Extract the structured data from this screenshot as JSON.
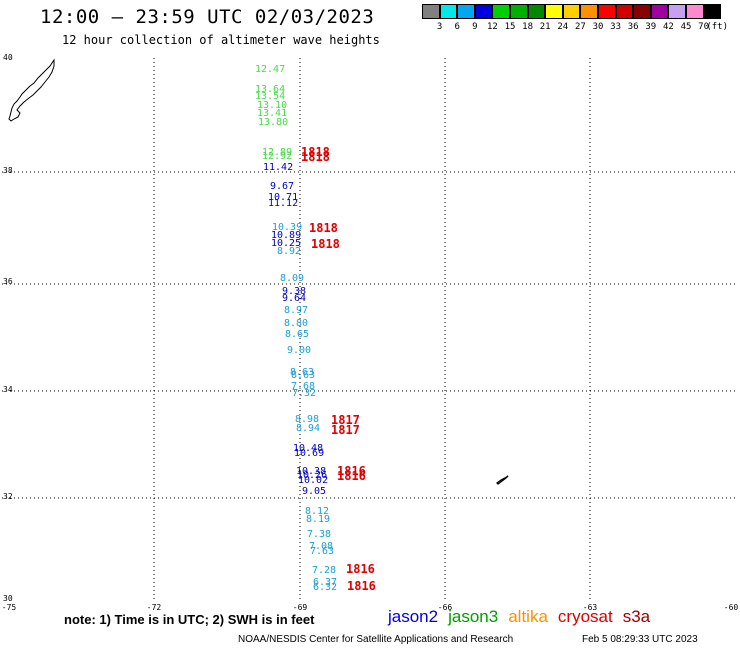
{
  "title": "12:00 — 23:59 UTC 02/03/2023",
  "subtitle": "12 hour collection of altimeter wave heights",
  "colorbar": {
    "colors": [
      "#808080",
      "#00e8e8",
      "#00a8f0",
      "#0000e0",
      "#00d000",
      "#00b000",
      "#008800",
      "#ffff00",
      "#ffd000",
      "#ff9000",
      "#ff0000",
      "#d00000",
      "#880000",
      "#a000a0",
      "#c8a0f0",
      "#ff88d0",
      "#000000"
    ],
    "labels": [
      "3",
      "6",
      "9",
      "12",
      "15",
      "18",
      "21",
      "24",
      "27",
      "30",
      "33",
      "36",
      "39",
      "42",
      "45",
      "70",
      "(ft)"
    ]
  },
  "axes": {
    "lat_labels": [
      "40",
      "38",
      "36",
      "34",
      "32",
      "30"
    ],
    "lon_labels": [
      "-75",
      "-72",
      "-69",
      "-66",
      "-63",
      "-60"
    ]
  },
  "observations": [
    {
      "text": "12.47",
      "color": "#44dd44"
    },
    {
      "text": "13.64",
      "color": "#44dd44"
    },
    {
      "text": "13.54",
      "color": "#44dd44"
    },
    {
      "text": "13.10",
      "color": "#44dd44"
    },
    {
      "text": "13.41",
      "color": "#44dd44"
    },
    {
      "text": "13.80",
      "color": "#44dd44"
    },
    {
      "text": "12.89",
      "color": "#44dd44"
    },
    {
      "text": "12.92",
      "color": "#44dd44"
    },
    {
      "text": "11.42",
      "color": "#0000c0"
    },
    {
      "text": "9.67",
      "color": "#0000c0"
    },
    {
      "text": "10.71",
      "color": "#0000c0"
    },
    {
      "text": "11.12",
      "color": "#0000c0"
    },
    {
      "text": "10.39",
      "color": "#1aa0d8"
    },
    {
      "text": "10.89",
      "color": "#0000c0"
    },
    {
      "text": "10.25",
      "color": "#0000c0"
    },
    {
      "text": "8.92",
      "color": "#1aa0d8"
    },
    {
      "text": "8.09",
      "color": "#1aa0d8"
    },
    {
      "text": "9.38",
      "color": "#0000c0"
    },
    {
      "text": "9.64",
      "color": "#0000c0"
    },
    {
      "text": "8.97",
      "color": "#1aa0d8"
    },
    {
      "text": "8.80",
      "color": "#1aa0d8"
    },
    {
      "text": "8.65",
      "color": "#1aa0d8"
    },
    {
      "text": "9.00",
      "color": "#1aa0d8"
    },
    {
      "text": "8.63",
      "color": "#1aa0d8"
    },
    {
      "text": "8.63",
      "color": "#1aa0d8"
    },
    {
      "text": "7.68",
      "color": "#1aa0d8"
    },
    {
      "text": "7.32",
      "color": "#1aa0d8"
    },
    {
      "text": "8.98",
      "color": "#1aa0d8"
    },
    {
      "text": "8.94",
      "color": "#1aa0d8"
    },
    {
      "text": "10.48",
      "color": "#0000c0"
    },
    {
      "text": "10.69",
      "color": "#0000c0"
    },
    {
      "text": "10.38",
      "color": "#0000c0"
    },
    {
      "text": "10.26",
      "color": "#0000c0"
    },
    {
      "text": "10.02",
      "color": "#0000c0"
    },
    {
      "text": "9.05",
      "color": "#0000c0"
    },
    {
      "text": "8.12",
      "color": "#1aa0d8"
    },
    {
      "text": "8.19",
      "color": "#1aa0d8"
    },
    {
      "text": "7.38",
      "color": "#1aa0d8"
    },
    {
      "text": "7.08",
      "color": "#1aa0d8"
    },
    {
      "text": "7.63",
      "color": "#1aa0d8"
    },
    {
      "text": "7.28",
      "color": "#1aa0d8"
    },
    {
      "text": "6.37",
      "color": "#1aa0d8"
    },
    {
      "text": "6.32",
      "color": "#1aa0d8"
    }
  ],
  "pass_times": [
    "1818",
    "1818",
    "1818",
    "1818",
    "1817",
    "1817",
    "1816",
    "1816",
    "1816",
    "1816"
  ],
  "note": "note:  1) Time is in UTC; 2) SWH is in feet",
  "legend": [
    {
      "name": "jason2",
      "color": "#0000e0"
    },
    {
      "name": "jason3",
      "color": "#00a000"
    },
    {
      "name": "altika",
      "color": "#ff9000"
    },
    {
      "name": "cryosat",
      "color": "#e00000"
    },
    {
      "name": "s3a",
      "color": "#a00000"
    }
  ],
  "credit": "NOAA/NESDIS Center for Satellite Applications and Research",
  "credit_time": "Feb  5 08:29:33 UTC 2023"
}
